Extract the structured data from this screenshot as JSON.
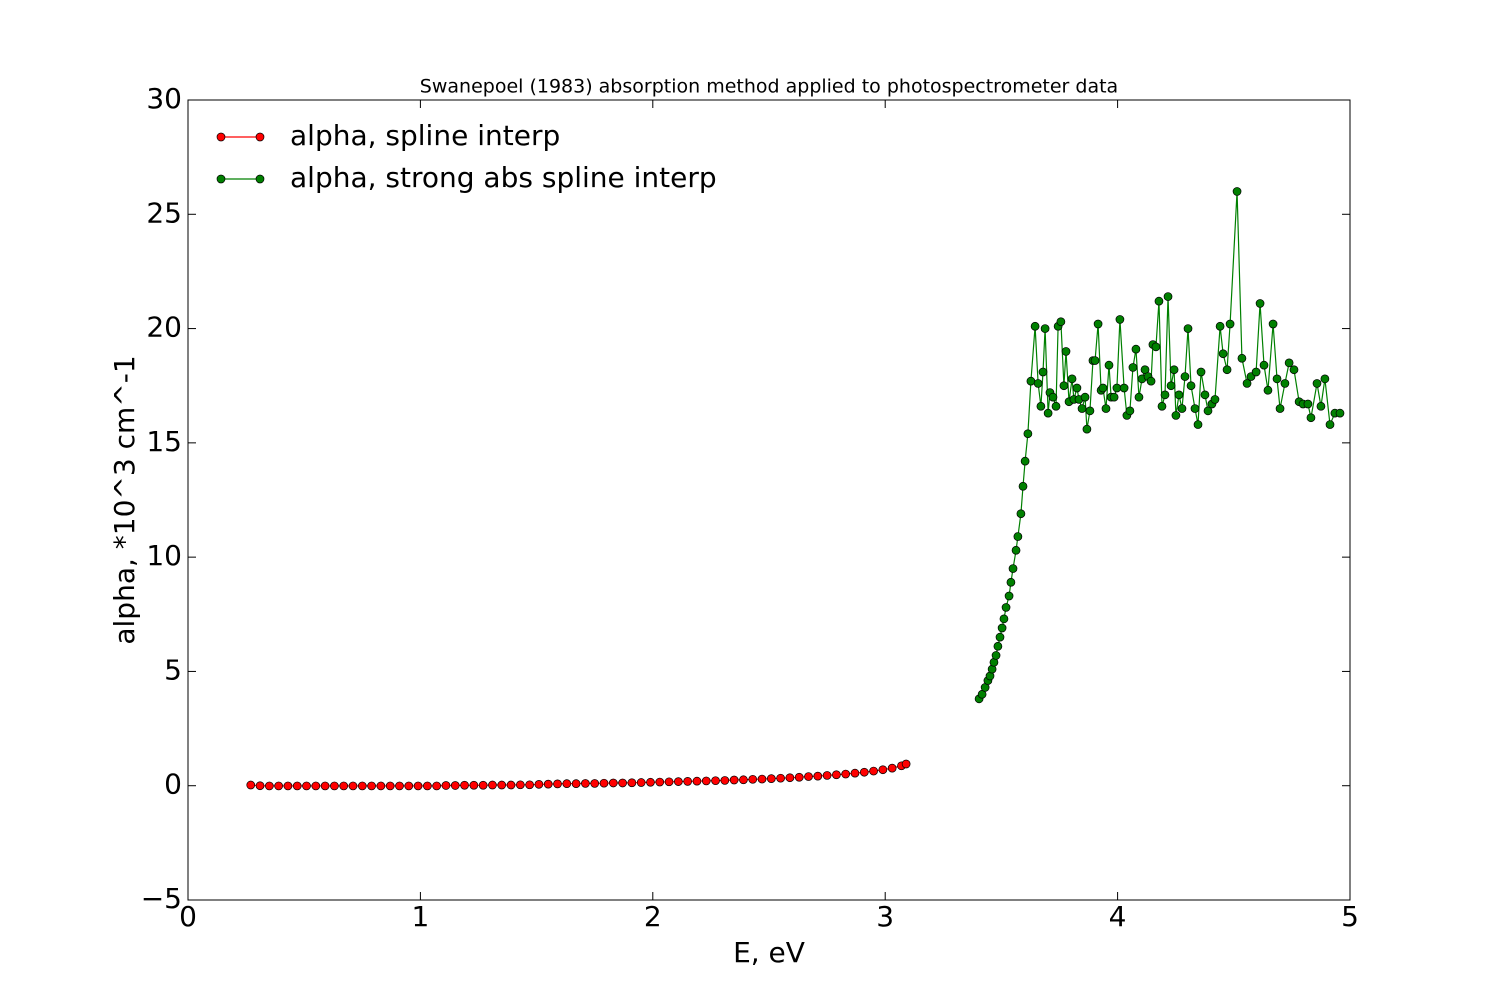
{
  "chart_data": {
    "type": "line",
    "title": "Swanepoel (1983) absorption method applied to photospectrometer data",
    "xlabel": "E, eV",
    "ylabel": "alpha, *10^3 cm^-1",
    "xlim": [
      0,
      5
    ],
    "xticks": [
      0,
      1,
      2,
      3,
      4,
      5
    ],
    "ylim": [
      -5,
      30
    ],
    "yticks": [
      {
        "value": -5,
        "label": "−5"
      },
      0,
      5,
      10,
      15,
      20,
      25,
      30
    ],
    "legend": "upper left",
    "series": [
      {
        "name": "alpha, spline interp",
        "color": "#ff0000",
        "x": [
          0.27,
          0.31,
          0.35,
          0.39,
          0.43,
          0.47,
          0.51,
          0.55,
          0.59,
          0.63,
          0.67,
          0.71,
          0.75,
          0.79,
          0.83,
          0.87,
          0.91,
          0.95,
          0.99,
          1.03,
          1.07,
          1.11,
          1.15,
          1.19,
          1.23,
          1.27,
          1.31,
          1.35,
          1.39,
          1.43,
          1.47,
          1.51,
          1.55,
          1.59,
          1.63,
          1.67,
          1.71,
          1.75,
          1.79,
          1.83,
          1.87,
          1.91,
          1.95,
          1.99,
          2.03,
          2.07,
          2.11,
          2.15,
          2.19,
          2.23,
          2.27,
          2.31,
          2.35,
          2.39,
          2.43,
          2.47,
          2.51,
          2.55,
          2.59,
          2.63,
          2.67,
          2.71,
          2.75,
          2.79,
          2.83,
          2.87,
          2.91,
          2.95,
          2.99,
          3.03,
          3.07,
          3.09
        ],
        "values": [
          0.03,
          0,
          -0.01,
          -0.01,
          -0.01,
          -0.01,
          -0.01,
          -0.01,
          -0.01,
          -0.01,
          -0.01,
          -0.01,
          -0.01,
          -0.01,
          -0.01,
          -0.01,
          -0.01,
          -0.01,
          -0.01,
          -0.01,
          -0.01,
          0.01,
          0.01,
          0.02,
          0.02,
          0.02,
          0.03,
          0.03,
          0.03,
          0.04,
          0.04,
          0.06,
          0.07,
          0.08,
          0.09,
          0.09,
          0.1,
          0.1,
          0.11,
          0.12,
          0.12,
          0.13,
          0.14,
          0.15,
          0.16,
          0.17,
          0.18,
          0.19,
          0.2,
          0.21,
          0.22,
          0.23,
          0.25,
          0.26,
          0.28,
          0.29,
          0.31,
          0.33,
          0.35,
          0.37,
          0.4,
          0.42,
          0.45,
          0.48,
          0.51,
          0.55,
          0.59,
          0.64,
          0.7,
          0.77,
          0.87,
          0.95
        ]
      },
      {
        "name": "alpha, strong abs spline interp",
        "color": "#008000",
        "x": [
          3.404,
          3.417,
          3.43,
          3.442,
          3.451,
          3.46,
          3.468,
          3.477,
          3.485,
          3.494,
          3.503,
          3.511,
          3.52,
          3.533,
          3.541,
          3.55,
          3.563,
          3.571,
          3.584,
          3.593,
          3.602,
          3.614,
          3.627,
          3.645,
          3.658,
          3.67,
          3.679,
          3.688,
          3.701,
          3.709,
          3.722,
          3.735,
          3.744,
          3.756,
          3.769,
          3.778,
          3.791,
          3.804,
          3.812,
          3.825,
          3.834,
          3.847,
          3.86,
          3.868,
          3.881,
          3.894,
          3.903,
          3.916,
          3.929,
          3.937,
          3.95,
          3.963,
          3.972,
          3.985,
          3.997,
          4.01,
          4.028,
          4.04,
          4.053,
          4.066,
          4.079,
          4.092,
          4.105,
          4.118,
          4.131,
          4.144,
          4.152,
          4.165,
          4.178,
          4.191,
          4.204,
          4.217,
          4.23,
          4.243,
          4.251,
          4.264,
          4.277,
          4.29,
          4.303,
          4.316,
          4.333,
          4.346,
          4.359,
          4.376,
          4.389,
          4.406,
          4.419,
          4.441,
          4.454,
          4.471,
          4.484,
          4.514,
          4.535,
          4.557,
          4.574,
          4.596,
          4.613,
          4.63,
          4.647,
          4.669,
          4.686,
          4.699,
          4.72,
          4.738,
          4.759,
          4.781,
          4.798,
          4.819,
          4.832,
          4.858,
          4.875,
          4.892,
          4.914,
          4.935,
          4.957
        ],
        "values": [
          3.8,
          4.0,
          4.3,
          4.6,
          4.8,
          5.1,
          5.4,
          5.7,
          6.1,
          6.5,
          6.9,
          7.3,
          7.8,
          8.3,
          8.9,
          9.5,
          10.3,
          10.9,
          11.9,
          13.1,
          14.2,
          15.4,
          17.7,
          20.1,
          17.6,
          16.6,
          18.1,
          20.0,
          16.3,
          17.2,
          17.0,
          16.6,
          20.1,
          20.3,
          17.5,
          19.0,
          16.8,
          17.8,
          16.9,
          17.4,
          16.9,
          16.5,
          17.0,
          15.6,
          16.4,
          18.6,
          18.6,
          20.2,
          17.3,
          17.4,
          16.5,
          18.4,
          17.0,
          17.0,
          17.4,
          20.4,
          17.4,
          16.2,
          16.4,
          18.3,
          19.1,
          17.0,
          17.8,
          18.2,
          17.9,
          17.7,
          19.3,
          19.2,
          21.2,
          16.6,
          17.1,
          21.4,
          17.5,
          18.2,
          16.2,
          17.1,
          16.5,
          17.9,
          20.0,
          17.5,
          16.5,
          15.8,
          18.1,
          17.1,
          16.4,
          16.7,
          16.9,
          20.1,
          18.9,
          18.2,
          20.2,
          26.0,
          18.7,
          17.6,
          17.9,
          18.1,
          21.1,
          18.4,
          17.3,
          20.2,
          17.8,
          16.5,
          17.6,
          18.5,
          18.2,
          16.8,
          16.7,
          16.7,
          16.1,
          17.6,
          16.6,
          17.8,
          15.8,
          16.3,
          16.3
        ]
      }
    ]
  }
}
